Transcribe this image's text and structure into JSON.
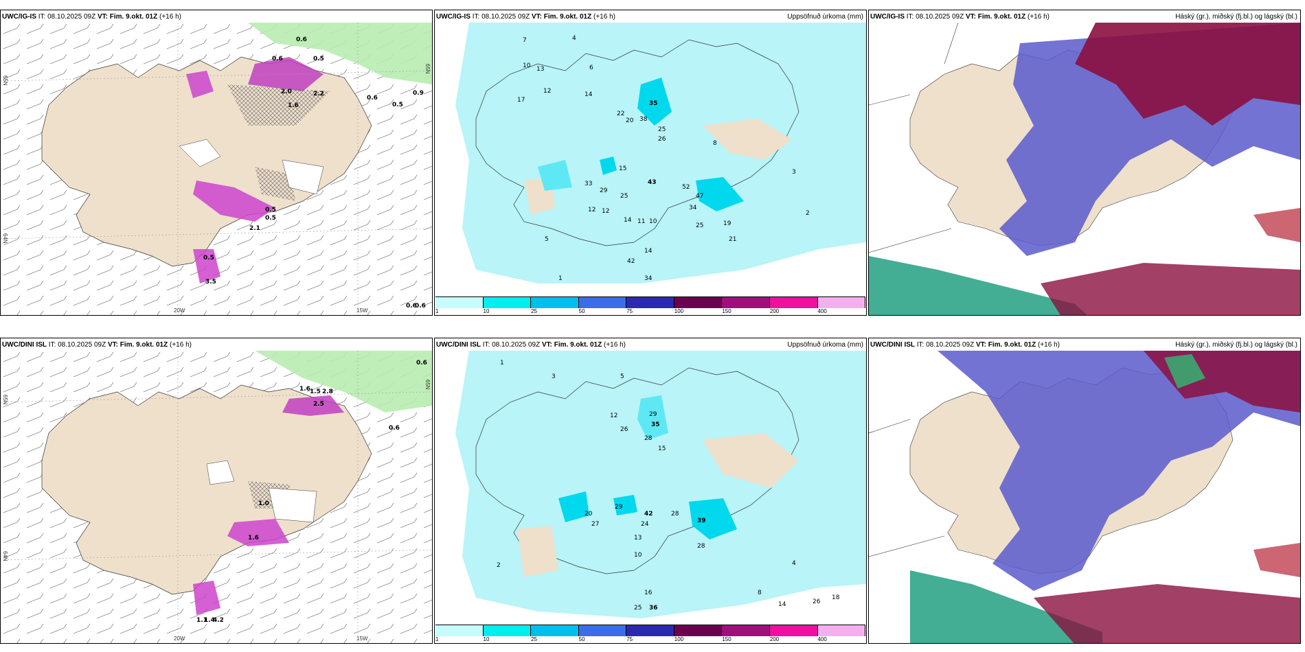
{
  "panels": [
    {
      "model": "UWC/IG-IS",
      "it": "IT: 08.10.2025 09Z",
      "vt": "VT: Fim. 9.okt. 01Z",
      "lead": "(+16 h)",
      "right": ""
    },
    {
      "model": "UWC/IG-IS",
      "it": "IT: 08.10.2025 09Z",
      "vt": "VT: Fim. 9.okt. 01Z",
      "lead": "(+16 h)",
      "right": "Uppsöfnuð úrkoma (mm)"
    },
    {
      "model": "UWC/IG-IS",
      "it": "IT: 08.10.2025 09Z",
      "vt": "VT: Fim. 9.okt. 01Z",
      "lead": "(+16 h)",
      "right": "Háský (gr.), miðský (fj.bl.) og lágský (bl.)"
    },
    {
      "model": "UWC/DINI ISL",
      "it": "IT: 08.10.2025 09Z",
      "vt": "VT: Fim. 9.okt. 01Z",
      "lead": "(+16 h)",
      "right": ""
    },
    {
      "model": "UWC/DINI ISL",
      "it": "IT: 08.10.2025 09Z",
      "vt": "VT: Fim. 9.okt. 01Z",
      "lead": "(+16 h)",
      "right": "Uppsöfnuð úrkoma (mm)"
    },
    {
      "model": "UWC/DINI ISL",
      "it": "IT: 08.10.2025 09Z",
      "vt": "VT: Fim. 9.okt. 01Z",
      "lead": "(+16 h)",
      "right": "Háský (gr.), miðský (fj.bl.) og lágský (bl.)"
    }
  ],
  "axes": {
    "lon_20": "20W",
    "lon_15": "15W",
    "lat_65": "65N",
    "lat_64": "64N",
    "lat_66": "66N"
  },
  "colorbar": {
    "labels": [
      "1",
      "10",
      "25",
      "50",
      "75",
      "100",
      "150",
      "200",
      "400"
    ],
    "colors": [
      "#c8fbfb",
      "#00eeee",
      "#00bfee",
      "#3a6ee8",
      "#2a2ab0",
      "#6b0050",
      "#a0107a",
      "#ee10a0",
      "#f4b0ee"
    ]
  },
  "colors": {
    "land": "#efe0cc",
    "precip_light": "#b8f4f8",
    "precip_mid": "#00e0ee",
    "purple": "#cc44cc",
    "dark_red": "#8b1040",
    "cloud_blue": "#5a5acc",
    "green": "#a0e8a0"
  },
  "ig_precip_labels": [
    "0.6",
    "0.5",
    "0.6",
    "0.9",
    "0.5",
    "0.6",
    "2.2",
    "2.0",
    "1.6",
    "0.5",
    "0.5",
    "2.1",
    "0.5",
    "3.5",
    "0.6",
    "0.6"
  ],
  "ig_accum_labels": [
    "7",
    "4",
    "6",
    "10",
    "13",
    "17",
    "12",
    "14",
    "22",
    "20",
    "38",
    "35",
    "25",
    "26",
    "15",
    "43",
    "29",
    "25",
    "33",
    "12",
    "12",
    "52",
    "47",
    "34",
    "25",
    "19",
    "21",
    "14",
    "11",
    "10",
    "42",
    "14",
    "34",
    "5",
    "8",
    "3",
    "2",
    "1"
  ],
  "dini_precip_labels": [
    "0.6",
    "1.6",
    "1.5",
    "2.5",
    "2.8",
    "0.6",
    "1.0",
    "1.6",
    "1.1",
    "1.4",
    "4.2"
  ],
  "dini_accum_labels": [
    "1",
    "3",
    "5",
    "12",
    "26",
    "29",
    "35",
    "28",
    "15",
    "42",
    "28",
    "39",
    "28",
    "29",
    "20",
    "27",
    "24",
    "13",
    "10",
    "16",
    "25",
    "36",
    "14",
    "26",
    "18",
    "8",
    "4",
    "2"
  ]
}
